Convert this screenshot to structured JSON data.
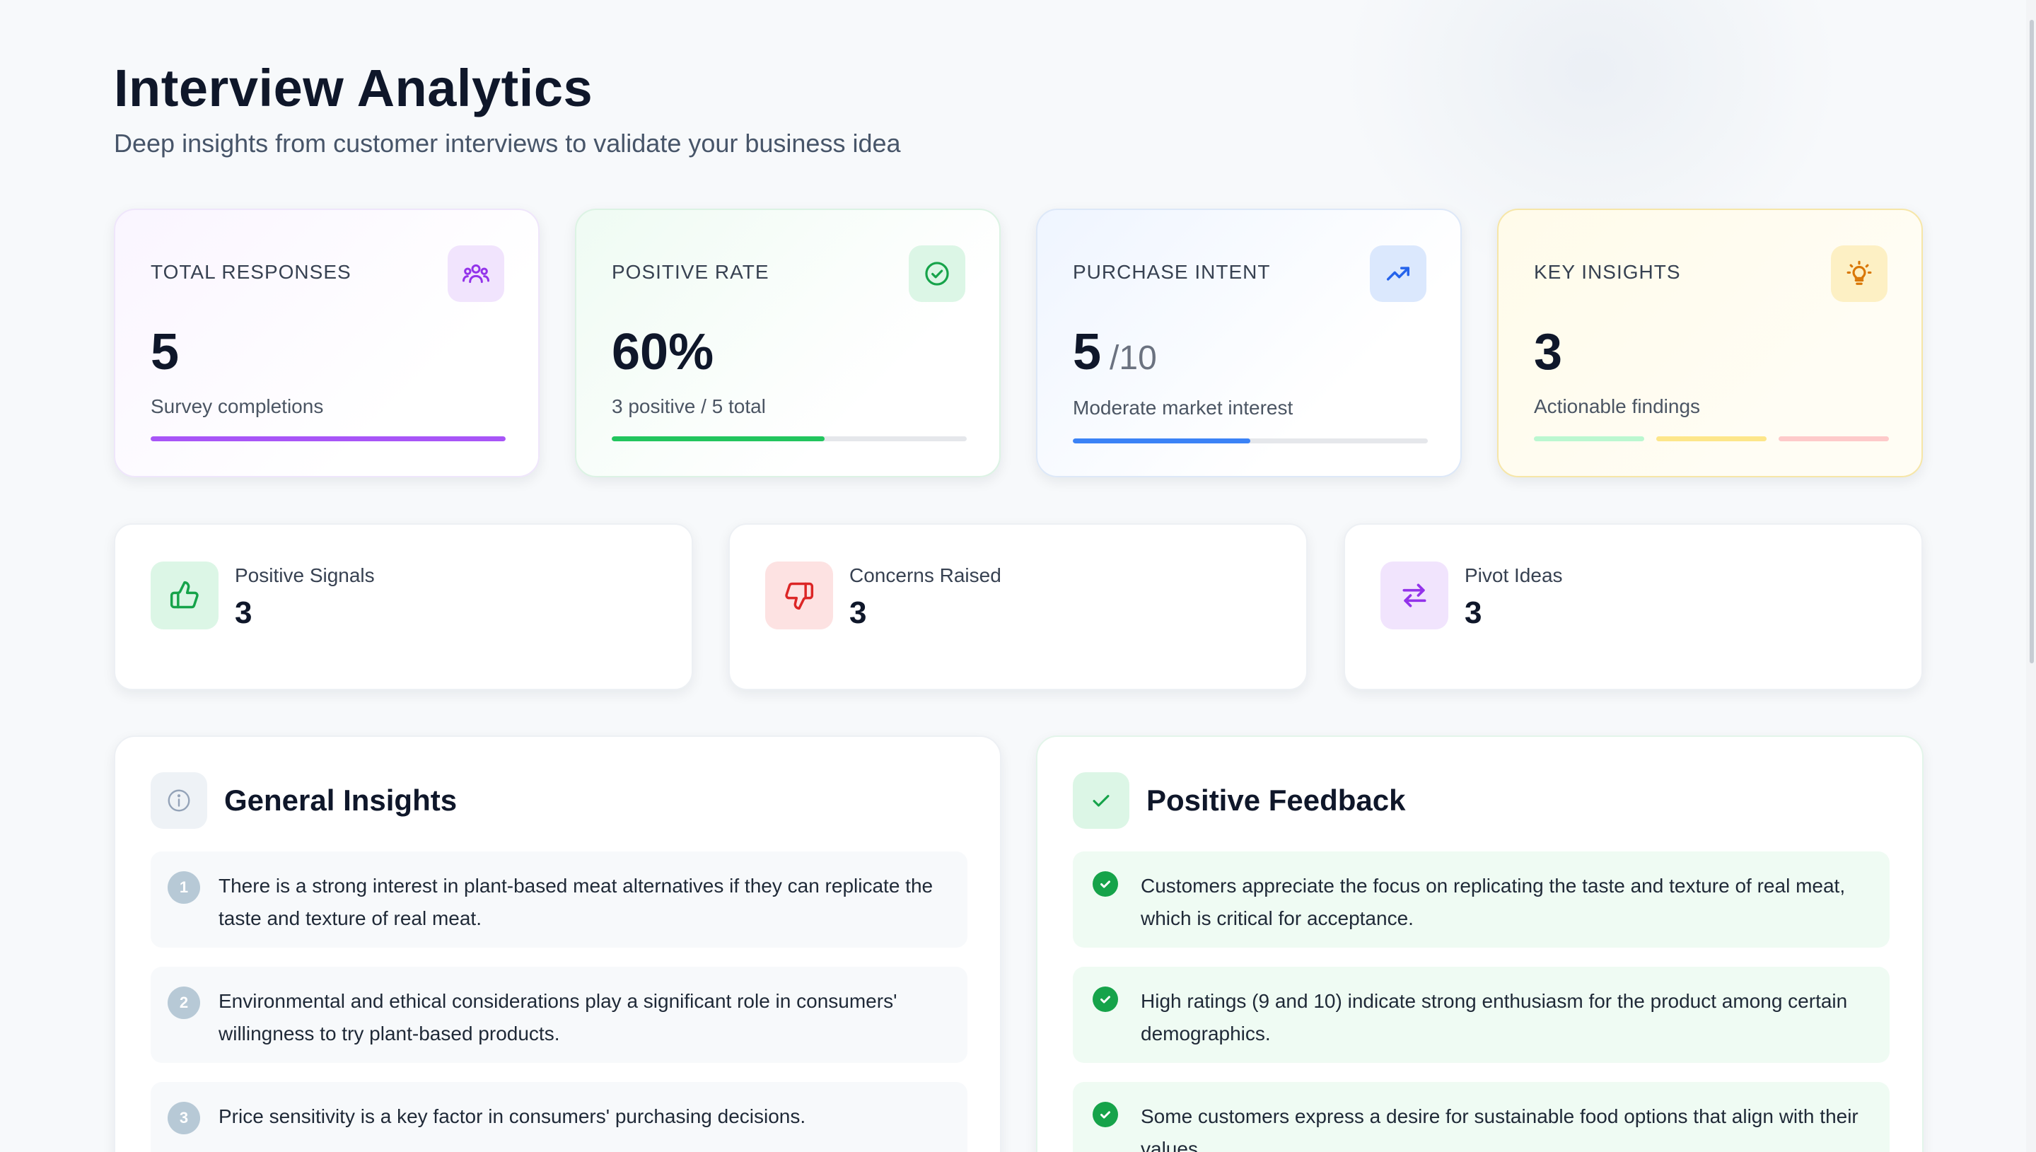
{
  "header": {
    "title": "Interview Analytics",
    "subtitle": "Deep insights from customer interviews to validate your business idea"
  },
  "stats": {
    "total_responses": {
      "label": "TOTAL RESPONSES",
      "value": "5",
      "description": "Survey completions",
      "progress": 1.0,
      "icon": "users-icon",
      "accent": "#a855f7"
    },
    "positive_rate": {
      "label": "POSITIVE RATE",
      "value": "60%",
      "description": "3 positive / 5 total",
      "progress": 0.6,
      "icon": "check-circle-icon",
      "accent": "#22c55e"
    },
    "purchase_intent": {
      "label": "PURCHASE INTENT",
      "value": "5",
      "suffix": "/10",
      "description": "Moderate market interest",
      "progress": 0.5,
      "icon": "trending-up-icon",
      "accent": "#3b82f6"
    },
    "key_insights": {
      "label": "KEY INSIGHTS",
      "value": "3",
      "description": "Actionable findings",
      "icon": "lightbulb-icon",
      "bar_colors": [
        "#bbf7d0",
        "#fde68a",
        "#fecaca"
      ]
    }
  },
  "signals": {
    "positive": {
      "label": "Positive Signals",
      "value": "3",
      "icon": "thumbs-up-icon",
      "color": "#16a34a"
    },
    "concerns": {
      "label": "Concerns Raised",
      "value": "3",
      "icon": "thumbs-down-icon",
      "color": "#dc2626"
    },
    "pivots": {
      "label": "Pivot Ideas",
      "value": "3",
      "icon": "arrows-swap-icon",
      "color": "#9333ea"
    }
  },
  "general_insights": {
    "title": "General Insights",
    "icon": "info-icon",
    "items": [
      {
        "num": "1",
        "text": "There is a strong interest in plant-based meat alternatives if they can replicate the taste and texture of real meat."
      },
      {
        "num": "2",
        "text": "Environmental and ethical considerations play a significant role in consumers' willingness to try plant-based products."
      },
      {
        "num": "3",
        "text": "Price sensitivity is a key factor in consumers' purchasing decisions."
      }
    ]
  },
  "positive_feedback": {
    "title": "Positive Feedback",
    "icon": "check-icon",
    "items": [
      {
        "text": "Customers appreciate the focus on replicating the taste and texture of real meat, which is critical for acceptance."
      },
      {
        "text": "High ratings (9 and 10) indicate strong enthusiasm for the product among certain demographics."
      },
      {
        "text": "Some customers express a desire for sustainable food options that align with their values."
      }
    ]
  }
}
